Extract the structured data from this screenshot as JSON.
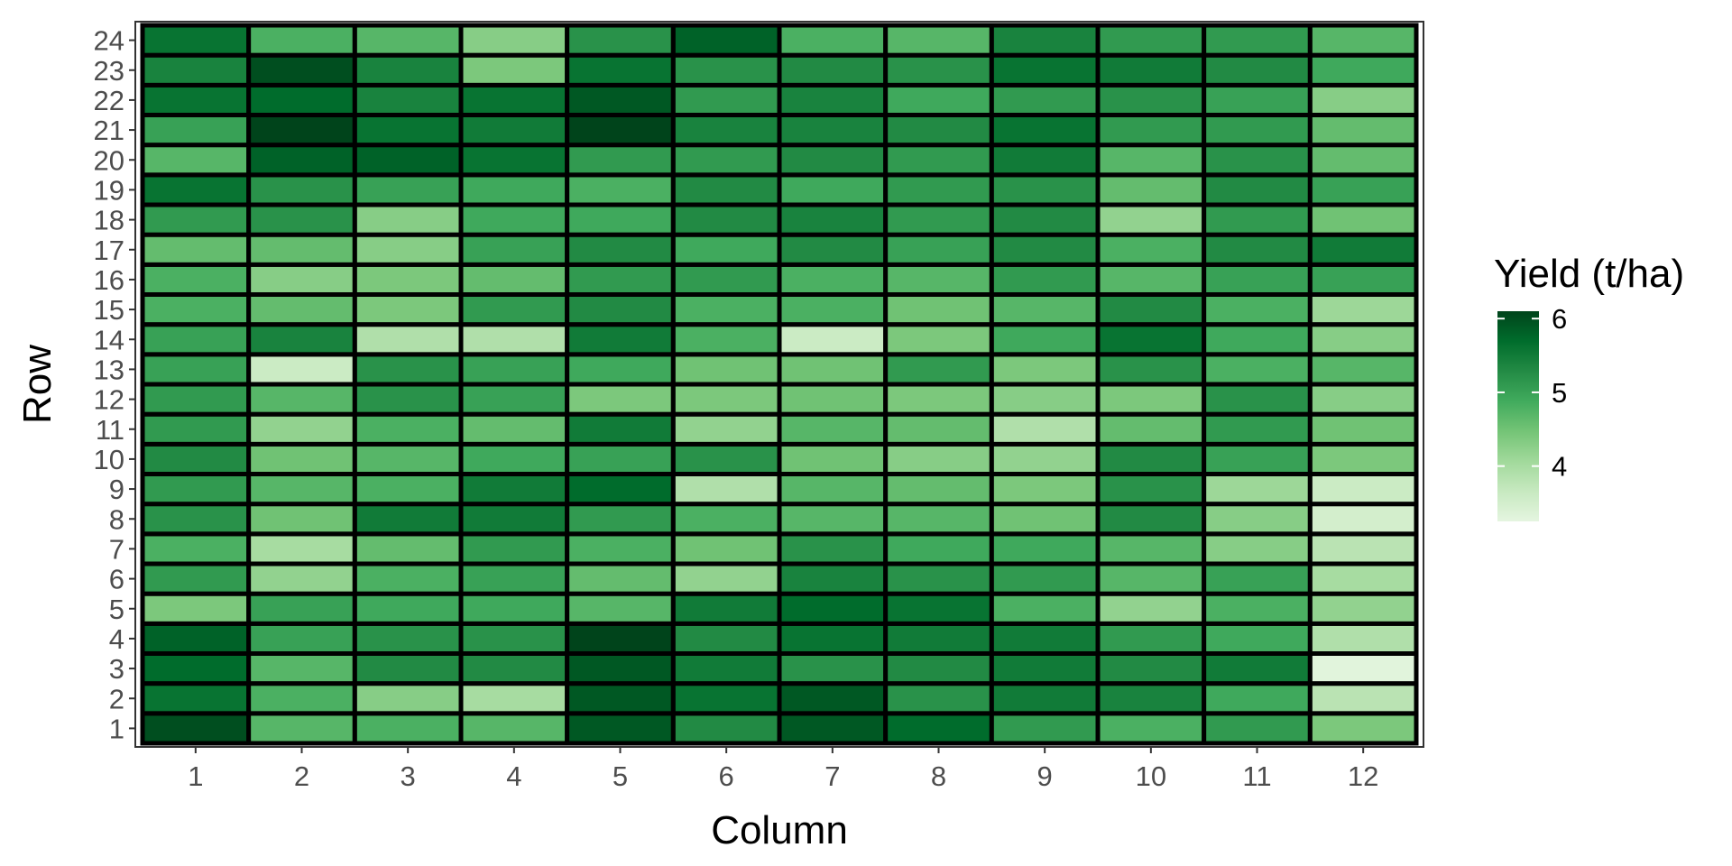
{
  "chart_data": {
    "type": "heatmap",
    "title": "",
    "xlabel": "Column",
    "ylabel": "Row",
    "x_categories": [
      "1",
      "2",
      "3",
      "4",
      "5",
      "6",
      "7",
      "8",
      "9",
      "10",
      "11",
      "12"
    ],
    "y_categories": [
      "1",
      "2",
      "3",
      "4",
      "5",
      "6",
      "7",
      "8",
      "9",
      "10",
      "11",
      "12",
      "13",
      "14",
      "15",
      "16",
      "17",
      "18",
      "19",
      "20",
      "21",
      "22",
      "23",
      "24"
    ],
    "legend": {
      "title": "Yield (t/ha)",
      "ticks": [
        6,
        5,
        4
      ],
      "min": 3.25,
      "max": 6.1,
      "color_low": "#e5f5e0",
      "color_high": "#00441b",
      "position": "right"
    },
    "values_by_row": [
      [
        6.0,
        4.7,
        4.8,
        4.7,
        5.9,
        5.3,
        5.9,
        5.7,
        5.1,
        4.8,
        5.1,
        4.4
      ],
      [
        5.6,
        4.8,
        4.3,
        4.0,
        5.9,
        5.6,
        5.9,
        5.2,
        5.5,
        5.4,
        4.9,
        3.8
      ],
      [
        5.7,
        4.7,
        5.3,
        5.3,
        5.9,
        5.5,
        5.2,
        5.3,
        5.5,
        5.3,
        5.5,
        3.3
      ],
      [
        5.8,
        5.0,
        5.2,
        5.2,
        6.1,
        5.3,
        5.6,
        5.5,
        5.5,
        5.1,
        4.9,
        3.9
      ],
      [
        4.4,
        5.0,
        4.9,
        4.9,
        4.7,
        5.5,
        5.7,
        5.6,
        4.8,
        4.2,
        4.8,
        4.2
      ],
      [
        5.1,
        4.2,
        4.8,
        5.0,
        4.6,
        4.2,
        5.4,
        5.2,
        5.1,
        4.7,
        5.0,
        4.0
      ],
      [
        4.8,
        4.0,
        4.6,
        5.1,
        4.8,
        4.5,
        5.2,
        4.9,
        4.9,
        4.7,
        4.3,
        3.8
      ],
      [
        5.2,
        4.5,
        5.5,
        5.5,
        5.1,
        4.8,
        4.7,
        4.7,
        4.5,
        5.3,
        4.3,
        3.5
      ],
      [
        5.1,
        4.7,
        4.8,
        5.5,
        5.7,
        3.9,
        4.7,
        4.6,
        4.4,
        5.2,
        4.1,
        3.6
      ],
      [
        5.3,
        4.5,
        4.7,
        4.9,
        5.0,
        5.2,
        4.5,
        4.3,
        4.2,
        5.3,
        5.0,
        4.4
      ],
      [
        5.1,
        4.2,
        4.8,
        4.6,
        5.5,
        4.2,
        4.7,
        4.6,
        3.9,
        4.6,
        5.1,
        4.5
      ],
      [
        5.1,
        4.7,
        5.2,
        5.0,
        4.4,
        4.4,
        4.5,
        4.4,
        4.3,
        4.4,
        5.2,
        4.3
      ],
      [
        5.0,
        3.6,
        5.2,
        5.0,
        4.9,
        4.5,
        4.5,
        5.1,
        4.4,
        5.2,
        4.8,
        4.7
      ],
      [
        5.0,
        5.4,
        3.9,
        3.9,
        5.5,
        4.8,
        3.6,
        4.4,
        4.9,
        5.6,
        4.9,
        4.3
      ],
      [
        4.8,
        4.6,
        4.4,
        5.1,
        5.3,
        4.8,
        4.8,
        4.5,
        4.7,
        5.3,
        4.8,
        4.1
      ],
      [
        4.8,
        4.3,
        4.4,
        4.6,
        5.1,
        5.1,
        4.8,
        4.7,
        5.1,
        4.7,
        5.0,
        5.0
      ],
      [
        4.6,
        4.6,
        4.3,
        5.0,
        5.3,
        4.9,
        5.3,
        5.0,
        5.3,
        4.8,
        5.3,
        5.5
      ],
      [
        5.1,
        5.2,
        4.3,
        4.9,
        4.9,
        5.3,
        5.4,
        5.1,
        5.3,
        4.2,
        5.1,
        4.5
      ],
      [
        5.6,
        5.2,
        5.0,
        4.9,
        4.8,
        5.3,
        4.9,
        5.1,
        5.2,
        4.6,
        5.3,
        5.0
      ],
      [
        4.7,
        5.8,
        5.8,
        5.6,
        5.1,
        5.1,
        5.3,
        5.1,
        5.5,
        4.7,
        5.2,
        4.6
      ],
      [
        5.0,
        6.1,
        5.6,
        5.5,
        6.1,
        5.4,
        5.4,
        5.3,
        5.6,
        5.1,
        5.1,
        4.6
      ],
      [
        5.6,
        5.7,
        5.4,
        5.6,
        5.9,
        5.1,
        5.4,
        4.9,
        5.1,
        5.2,
        5.0,
        4.3
      ],
      [
        5.4,
        6.0,
        5.4,
        4.4,
        5.6,
        5.2,
        5.3,
        5.2,
        5.6,
        5.5,
        5.3,
        4.9
      ],
      [
        5.6,
        4.8,
        4.7,
        4.3,
        5.2,
        5.8,
        4.8,
        4.7,
        5.4,
        5.1,
        5.1,
        4.7
      ]
    ]
  }
}
